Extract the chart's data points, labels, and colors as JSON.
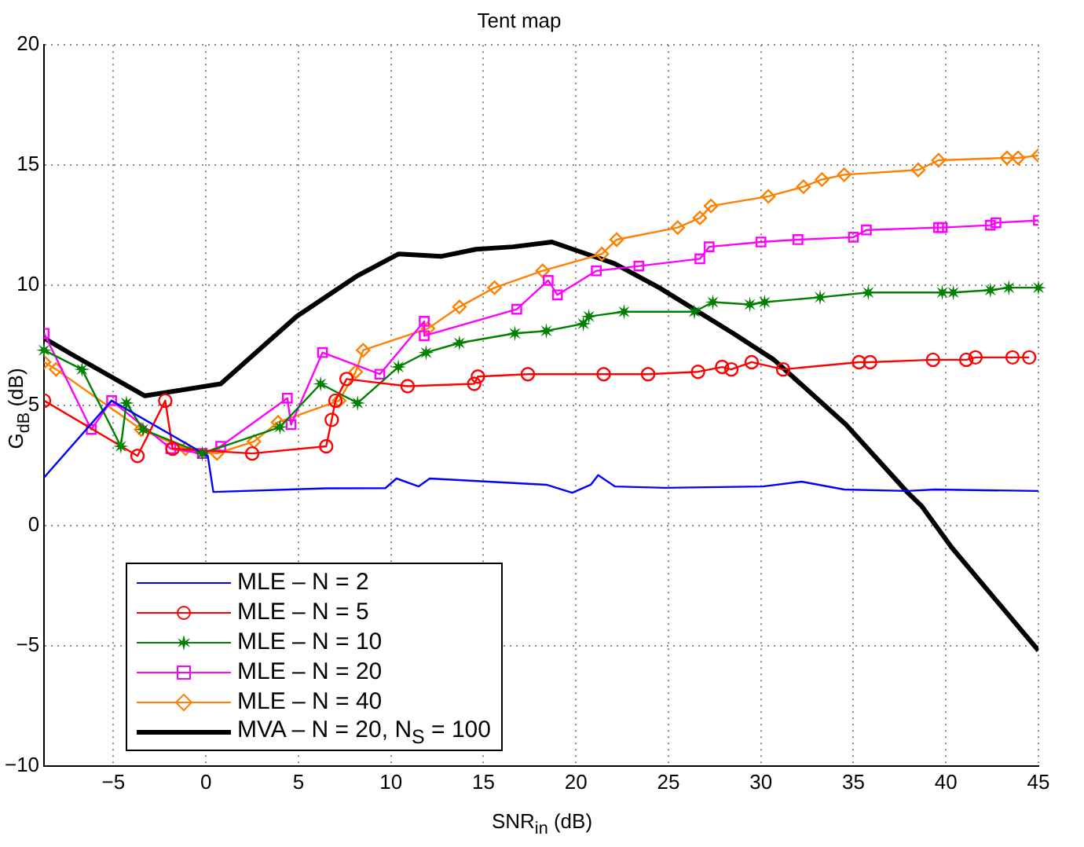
{
  "chart_data": {
    "type": "line",
    "title": "Tent map",
    "xlabel": "SNR$_{in}$ (dB)",
    "ylabel": "G$_{dB}$ (dB)",
    "xlim": [
      -8.75,
      45
    ],
    "xticks": [
      -5,
      0,
      5,
      10,
      15,
      20,
      25,
      30,
      35,
      40,
      45
    ],
    "ylim": [
      -10,
      20
    ],
    "yticks": [
      -10,
      -5,
      0,
      5,
      10,
      15,
      20
    ],
    "grid": true,
    "legend": "bottom left",
    "series": [
      {
        "name": "MLE – N = 2",
        "color": "#0000ff",
        "marker": "none",
        "x": [
          -8.75,
          -5.1,
          0.1,
          0.4,
          6.5,
          9.7,
          10.3,
          11.5,
          12.1,
          18.4,
          19.8,
          20.8,
          21.2,
          22.1,
          24.8,
          30.1,
          32.2,
          34.5,
          37.9,
          39.4,
          45
        ],
        "values": [
          2.0,
          5.2,
          2.9,
          1.4,
          1.55,
          1.56,
          1.96,
          1.63,
          1.96,
          1.7,
          1.37,
          1.7,
          2.1,
          1.63,
          1.57,
          1.63,
          1.83,
          1.5,
          1.44,
          1.5,
          1.44
        ]
      },
      {
        "name": "MLE – N = 5",
        "color": "#ff0000",
        "marker": "circle",
        "x": [
          -8.75,
          -3.7,
          -2.2,
          -1.8,
          2.5,
          6.5,
          6.8,
          7.0,
          7.6,
          10.9,
          14.5,
          14.7,
          17.4,
          21.5,
          23.9,
          26.6,
          27.9,
          28.4,
          29.5,
          31.2,
          35.3,
          35.9,
          39.3,
          41.1,
          41.6,
          43.6,
          44.5
        ],
        "values": [
          5.2,
          2.9,
          5.2,
          3.2,
          3.0,
          3.3,
          4.4,
          5.2,
          6.1,
          5.8,
          5.9,
          6.2,
          6.3,
          6.3,
          6.3,
          6.4,
          6.6,
          6.5,
          6.8,
          6.5,
          6.8,
          6.8,
          6.9,
          6.9,
          7.0,
          7.0,
          7.0
        ]
      },
      {
        "name": "MLE – N = 10",
        "color": "#008000",
        "marker": "star",
        "x": [
          -8.75,
          -6.7,
          -4.6,
          -4.3,
          -3.4,
          -0.2,
          4.0,
          6.2,
          8.2,
          10.4,
          11.9,
          13.7,
          16.7,
          18.4,
          20.4,
          20.7,
          22.6,
          26.4,
          27.4,
          29.4,
          30.2,
          33.2,
          35.8,
          39.8,
          40.4,
          42.4,
          43.4,
          45
        ],
        "values": [
          7.3,
          6.5,
          3.3,
          5.1,
          4.0,
          3.0,
          4.1,
          5.9,
          5.1,
          6.6,
          7.2,
          7.6,
          8.0,
          8.1,
          8.4,
          8.7,
          8.9,
          8.9,
          9.3,
          9.2,
          9.3,
          9.5,
          9.7,
          9.7,
          9.7,
          9.8,
          9.9,
          9.9
        ]
      },
      {
        "name": "MLE – N = 20",
        "color": "#ff00ff",
        "marker": "square",
        "x": [
          -8.75,
          -6.2,
          -5.1,
          -1.9,
          -0.2,
          0.8,
          4.4,
          4.6,
          6.3,
          9.4,
          11.8,
          11.8,
          16.8,
          18.5,
          19.0,
          21.1,
          23.4,
          26.7,
          27.2,
          30.0,
          32.0,
          35.0,
          35.7,
          39.6,
          39.8,
          42.4,
          42.7,
          45
        ],
        "values": [
          8.0,
          4.0,
          5.2,
          3.2,
          3.0,
          3.3,
          5.3,
          4.2,
          7.2,
          6.3,
          8.5,
          7.9,
          9.0,
          10.2,
          9.6,
          10.6,
          10.8,
          11.1,
          11.6,
          11.8,
          11.9,
          12.0,
          12.3,
          12.4,
          12.4,
          12.5,
          12.6,
          12.7
        ]
      },
      {
        "name": "MLE – N = 40",
        "color": "#ff8000",
        "marker": "diamond",
        "x": [
          -8.75,
          -8.1,
          -3.5,
          -1.1,
          0.6,
          2.6,
          3.9,
          7.2,
          8.1,
          8.5,
          12.0,
          13.7,
          15.6,
          18.2,
          21.4,
          22.2,
          25.5,
          26.7,
          27.3,
          30.4,
          32.3,
          33.3,
          34.5,
          38.5,
          39.6,
          43.3,
          43.9,
          45
        ],
        "values": [
          6.8,
          6.5,
          4.0,
          3.2,
          3.0,
          3.5,
          4.3,
          5.2,
          6.4,
          7.3,
          8.2,
          9.1,
          9.9,
          10.6,
          11.3,
          11.9,
          12.4,
          12.8,
          13.3,
          13.7,
          14.1,
          14.4,
          14.6,
          14.8,
          15.2,
          15.3,
          15.3,
          15.4
        ]
      },
      {
        "name": "MVA – N = 20, N$_{S}$ = 100",
        "color": "#000000",
        "marker": "none",
        "x": [
          -8.75,
          -7.2,
          -3.3,
          0.8,
          4.9,
          8.2,
          10.4,
          12.7,
          14.6,
          16.6,
          18.7,
          22.1,
          24.5,
          28.5,
          30.7,
          34.6,
          37.9,
          38.7,
          40.3,
          45
        ],
        "values": [
          7.8,
          7.1,
          5.4,
          5.9,
          8.7,
          10.4,
          11.3,
          11.2,
          11.5,
          11.6,
          11.8,
          10.9,
          9.9,
          8.0,
          6.9,
          4.2,
          1.4,
          0.8,
          -0.9,
          -5.2
        ]
      }
    ]
  }
}
